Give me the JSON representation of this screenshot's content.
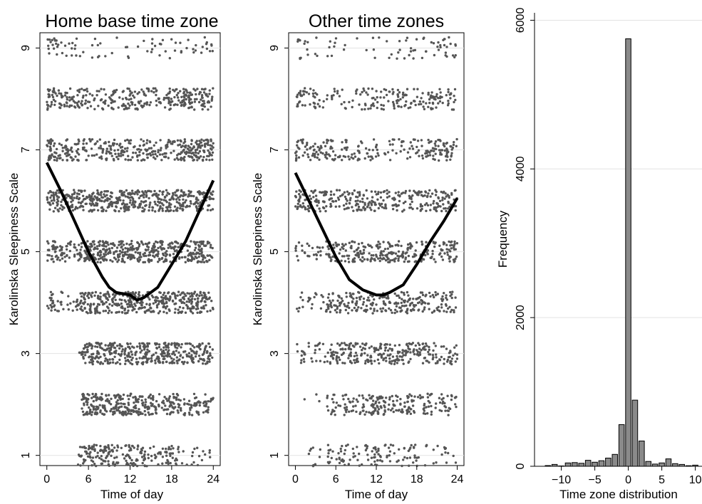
{
  "chart_data": [
    {
      "type": "scatter",
      "title": "Home base time zone",
      "xlabel": "Time of day",
      "ylabel": "Karolinska Sleepiness Scale",
      "xlim": [
        -1,
        25
      ],
      "ylim": [
        0.8,
        9.3
      ],
      "xticks": [
        0,
        6,
        12,
        18,
        24
      ],
      "xtick_labels": [
        "0",
        "6",
        "12",
        "18",
        "24"
      ],
      "yticks": [
        1,
        3,
        5,
        7,
        9
      ],
      "ytick_labels": [
        "1",
        "3",
        "5",
        "7",
        "9"
      ],
      "grid": true,
      "point_color": "#555555",
      "line_color": "#000000",
      "jitter_rows": [
        {
          "level": 1,
          "from": 4.5,
          "to": 24,
          "density": [
            0.3,
            0.8,
            0.6,
            0.4,
            0.3
          ]
        },
        {
          "level": 2,
          "from": 5,
          "to": 24,
          "density": [
            0.2,
            1.0,
            1.0,
            0.9,
            0.6
          ]
        },
        {
          "level": 3,
          "from": 4,
          "to": 24,
          "density": [
            0.3,
            1.0,
            1.0,
            1.0,
            0.8
          ]
        },
        {
          "level": 4,
          "from": 0,
          "to": 24,
          "density": [
            0.4,
            1.0,
            1.0,
            1.0,
            0.9
          ]
        },
        {
          "level": 5,
          "from": 0,
          "to": 24,
          "density": [
            0.7,
            1.0,
            1.0,
            1.0,
            1.0
          ]
        },
        {
          "level": 6,
          "from": 0,
          "to": 24,
          "density": [
            0.9,
            0.9,
            0.9,
            1.0,
            1.0
          ]
        },
        {
          "level": 7,
          "from": 0,
          "to": 24,
          "density": [
            0.8,
            0.6,
            0.6,
            0.7,
            1.0
          ]
        },
        {
          "level": 8,
          "from": 0,
          "to": 24,
          "density": [
            0.7,
            0.5,
            0.5,
            0.6,
            0.8
          ]
        },
        {
          "level": 9,
          "from": 0,
          "to": 24,
          "density": [
            0.2,
            0.1,
            0.1,
            0.1,
            0.2
          ]
        }
      ],
      "smooth": {
        "x": [
          0,
          2,
          4,
          6,
          8,
          9,
          10,
          12,
          13,
          14,
          16,
          18,
          20,
          22,
          24
        ],
        "y": [
          6.75,
          6.2,
          5.6,
          5.0,
          4.5,
          4.3,
          4.2,
          4.15,
          4.05,
          4.1,
          4.3,
          4.75,
          5.2,
          5.8,
          6.4
        ]
      }
    },
    {
      "type": "scatter",
      "title": "Other time zones",
      "xlabel": "Time of day",
      "ylabel": "Karolinska Sleepiness Scale",
      "xlim": [
        -1,
        25
      ],
      "ylim": [
        0.8,
        9.3
      ],
      "xticks": [
        0,
        6,
        12,
        18,
        24
      ],
      "xtick_labels": [
        "0",
        "6",
        "12",
        "18",
        "24"
      ],
      "yticks": [
        1,
        3,
        5,
        7,
        9
      ],
      "ytick_labels": [
        "1",
        "3",
        "5",
        "7",
        "9"
      ],
      "grid": true,
      "point_color": "#555555",
      "line_color": "#000000",
      "jitter_rows": [
        {
          "level": 1,
          "from": 2,
          "to": 24,
          "density": [
            0.1,
            0.4,
            0.3,
            0.2,
            0.1
          ]
        },
        {
          "level": 2,
          "from": 1,
          "to": 24,
          "density": [
            0.1,
            0.5,
            0.6,
            0.5,
            0.3
          ]
        },
        {
          "level": 3,
          "from": 0,
          "to": 24,
          "density": [
            0.3,
            0.6,
            0.7,
            0.6,
            0.5
          ]
        },
        {
          "level": 4,
          "from": 0,
          "to": 24,
          "density": [
            0.2,
            0.6,
            0.6,
            0.6,
            0.5
          ]
        },
        {
          "level": 5,
          "from": 0,
          "to": 24,
          "density": [
            0.4,
            0.6,
            0.6,
            0.6,
            0.6
          ]
        },
        {
          "level": 6,
          "from": 0,
          "to": 24,
          "density": [
            0.6,
            0.6,
            0.5,
            0.6,
            0.6
          ]
        },
        {
          "level": 7,
          "from": 0,
          "to": 24,
          "density": [
            0.5,
            0.4,
            0.3,
            0.4,
            0.6
          ]
        },
        {
          "level": 8,
          "from": 0,
          "to": 24,
          "density": [
            0.4,
            0.3,
            0.3,
            0.3,
            0.4
          ]
        },
        {
          "level": 9,
          "from": 0,
          "to": 24,
          "density": [
            0.15,
            0.1,
            0.05,
            0.1,
            0.15
          ]
        }
      ],
      "smooth": {
        "x": [
          0,
          2,
          4,
          6,
          8,
          10,
          12,
          13,
          14,
          16,
          18,
          20,
          22,
          24
        ],
        "y": [
          6.55,
          6.0,
          5.45,
          4.9,
          4.45,
          4.25,
          4.15,
          4.15,
          4.2,
          4.35,
          4.75,
          5.2,
          5.6,
          6.05
        ]
      }
    },
    {
      "type": "bar",
      "title": "",
      "xlabel": "Time zone distribution",
      "ylabel": "Frequency",
      "xlim": [
        -14,
        11
      ],
      "ylim": [
        0,
        6100
      ],
      "xticks": [
        -10,
        -5,
        0,
        5,
        10
      ],
      "xtick_labels": [
        "−10",
        "−5",
        "0",
        "5",
        "10"
      ],
      "yticks": [
        0,
        2000,
        4000,
        6000
      ],
      "ytick_labels": [
        "0",
        "2000",
        "4000",
        "6000"
      ],
      "grid": true,
      "bar_color": "#8a8a8a",
      "x": [
        -12,
        -11,
        -10,
        -9,
        -8,
        -7,
        -6,
        -5,
        -4,
        -3,
        -2,
        -1,
        0,
        1,
        2,
        3,
        4,
        5,
        6,
        7,
        8,
        9,
        10
      ],
      "values": [
        10,
        25,
        5,
        45,
        50,
        40,
        80,
        55,
        75,
        110,
        160,
        560,
        5750,
        890,
        340,
        65,
        30,
        45,
        100,
        35,
        25,
        8,
        15
      ]
    }
  ]
}
